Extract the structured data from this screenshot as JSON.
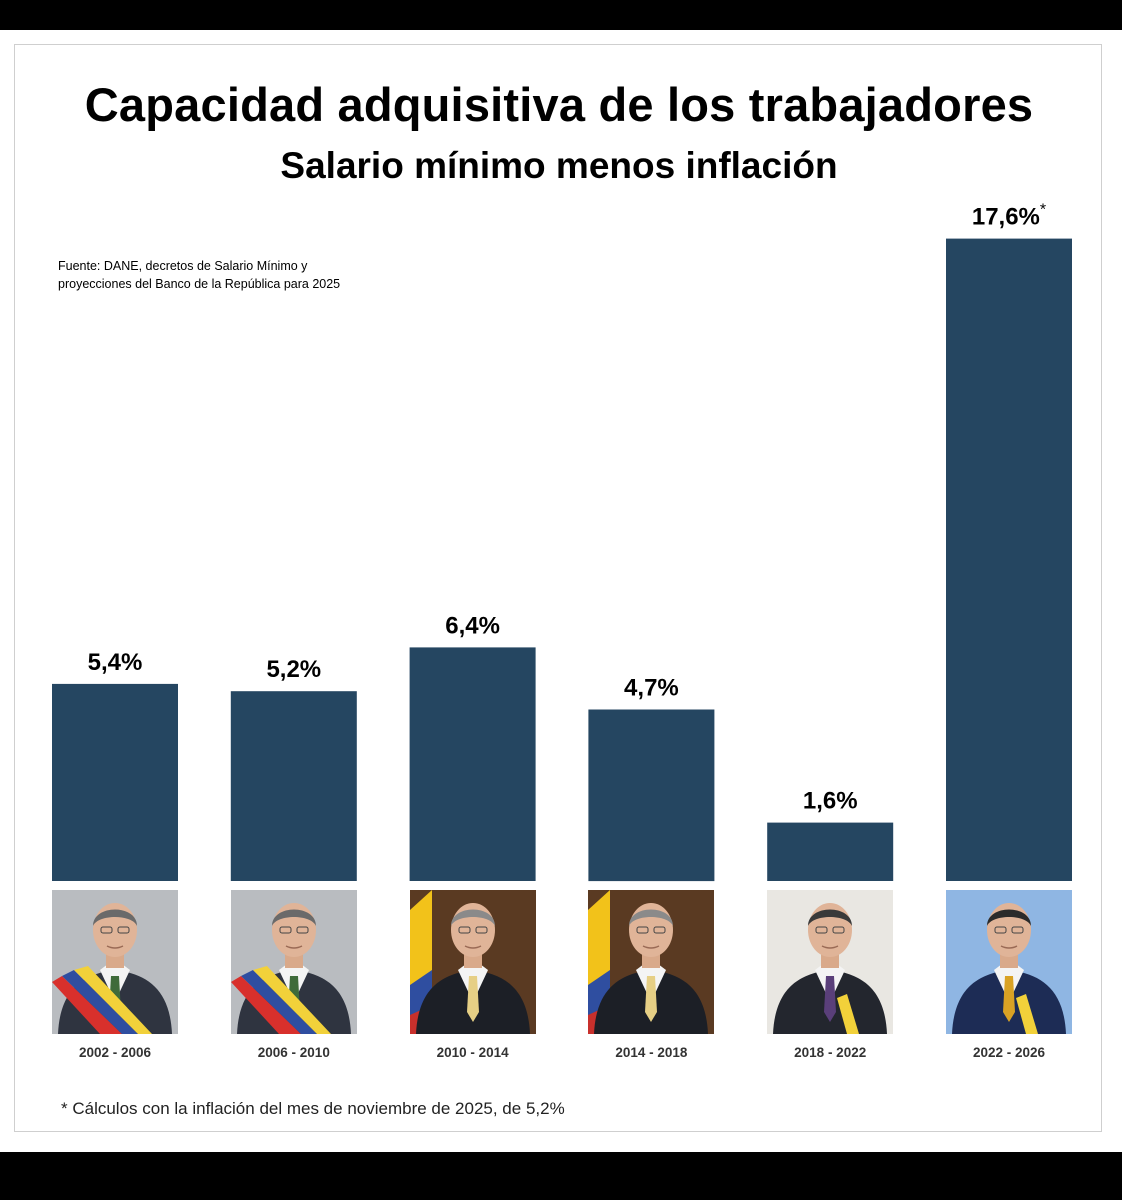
{
  "chart_data": {
    "type": "bar",
    "title": "Capacidad adquisitiva de los trabajadores",
    "subtitle": "Salario mínimo menos inflación",
    "xlabel": "",
    "ylabel": "",
    "ylim": [
      0,
      18
    ],
    "categories": [
      "2002 - 2006",
      "2006 - 2010",
      "2010 - 2014",
      "2014 - 2018",
      "2018 - 2022",
      "2022 - 2026"
    ],
    "values": [
      5.4,
      5.2,
      6.4,
      4.7,
      1.6,
      17.6
    ],
    "value_labels": [
      "5,4%",
      "5,2%",
      "6,4%",
      "4,7%",
      "1,6%",
      "17,6%"
    ],
    "value_label_markers": [
      "",
      "",
      "",
      "",
      "",
      "*"
    ],
    "bar_color": "#254661",
    "grid": false,
    "legend": "none"
  },
  "source_note": [
    "Fuente: DANE, decretos de Salario Mínimo y",
    "proyecciones del Banco de la República para 2025"
  ],
  "footnote": "* Cálculos con la inflación del mes de noviembre de 2025, de 5,2%",
  "portraits": [
    {
      "name": "portrait-2002-2006",
      "suit": "#2f3440",
      "tie": "#3f6b3a",
      "bg": "#b9bcc0",
      "sash": [
        "#f2d13a",
        "#2f4ea0",
        "#d8302c"
      ],
      "hair": "#6a6a6a",
      "flag": false
    },
    {
      "name": "portrait-2006-2010",
      "suit": "#2f3440",
      "tie": "#3f6b3a",
      "bg": "#b9bcc0",
      "sash": [
        "#f2d13a",
        "#2f4ea0",
        "#d8302c"
      ],
      "hair": "#6a6a6a",
      "flag": false
    },
    {
      "name": "portrait-2010-2014",
      "suit": "#1c1f26",
      "tie": "#e6cf85",
      "bg": "#5a3a22",
      "sash": [],
      "hair": "#8a8a8a",
      "flag": true
    },
    {
      "name": "portrait-2014-2018",
      "suit": "#1c1f26",
      "tie": "#e6cf85",
      "bg": "#5a3a22",
      "sash": [],
      "hair": "#8a8a8a",
      "flag": true
    },
    {
      "name": "portrait-2018-2022",
      "suit": "#23262e",
      "tie": "#5a3f7a",
      "bg": "#e9e7e2",
      "sash": [
        "#f2d13a"
      ],
      "hair": "#3a3a3a",
      "flag": false
    },
    {
      "name": "portrait-2022-2026",
      "suit": "#1d2c55",
      "tie": "#d9a224",
      "bg": "#8fb6e3",
      "sash": [
        "#f2d13a"
      ],
      "hair": "#2b2b2b",
      "flag": false
    }
  ]
}
